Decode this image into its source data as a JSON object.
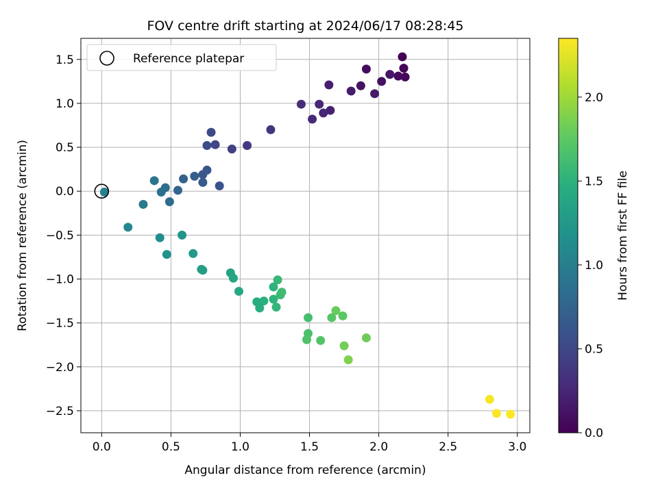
{
  "chart_data": {
    "type": "scatter",
    "title": "FOV centre drift starting at 2024/06/17 08:28:45",
    "xlabel": "Angular distance from reference (arcmin)",
    "ylabel": "Rotation from reference (arcmin)",
    "xlim": [
      -0.15,
      3.09
    ],
    "ylim": [
      -2.75,
      1.74
    ],
    "x_ticks": [
      0.0,
      0.5,
      1.0,
      1.5,
      2.0,
      2.5,
      3.0
    ],
    "x_tick_labels": [
      "0.0",
      "0.5",
      "1.0",
      "1.5",
      "2.0",
      "2.5",
      "3.0"
    ],
    "y_ticks": [
      1.5,
      1.0,
      0.5,
      0.0,
      -0.5,
      -1.0,
      -1.5,
      -2.0,
      -2.5
    ],
    "y_tick_labels": [
      "1.5",
      "1.0",
      "0.5",
      "0.0",
      "−0.5",
      "−1.0",
      "−1.5",
      "−2.0",
      "−2.5"
    ],
    "grid": true,
    "legend": {
      "position": "top-left",
      "entries": [
        "Reference platepar"
      ]
    },
    "reference_point": {
      "x": 0.0,
      "y": 0.0
    },
    "colorbar": {
      "label": "Hours from first FF file",
      "colormap": "viridis",
      "range": [
        0.0,
        2.35
      ],
      "ticks": [
        0.0,
        0.5,
        1.0,
        1.5,
        2.0
      ],
      "tick_labels": [
        "0.0",
        "0.5",
        "1.0",
        "1.5",
        "2.0"
      ]
    },
    "points": [
      {
        "x": 2.17,
        "y": 1.53,
        "t": 0.0
      },
      {
        "x": 2.18,
        "y": 1.4,
        "t": 0.02
      },
      {
        "x": 2.19,
        "y": 1.3,
        "t": 0.04
      },
      {
        "x": 2.14,
        "y": 1.31,
        "t": 0.06
      },
      {
        "x": 1.91,
        "y": 1.39,
        "t": 0.08
      },
      {
        "x": 2.02,
        "y": 1.25,
        "t": 0.1
      },
      {
        "x": 1.87,
        "y": 1.2,
        "t": 0.12
      },
      {
        "x": 2.08,
        "y": 1.33,
        "t": 0.14
      },
      {
        "x": 1.97,
        "y": 1.11,
        "t": 0.16
      },
      {
        "x": 1.8,
        "y": 1.14,
        "t": 0.18
      },
      {
        "x": 1.64,
        "y": 1.21,
        "t": 0.2
      },
      {
        "x": 1.65,
        "y": 0.92,
        "t": 0.22
      },
      {
        "x": 1.6,
        "y": 0.89,
        "t": 0.24
      },
      {
        "x": 1.57,
        "y": 0.99,
        "t": 0.26
      },
      {
        "x": 1.52,
        "y": 0.82,
        "t": 0.28
      },
      {
        "x": 1.44,
        "y": 0.99,
        "t": 0.3
      },
      {
        "x": 1.22,
        "y": 0.7,
        "t": 0.35
      },
      {
        "x": 1.05,
        "y": 0.52,
        "t": 0.4
      },
      {
        "x": 0.94,
        "y": 0.48,
        "t": 0.45
      },
      {
        "x": 0.82,
        "y": 0.53,
        "t": 0.5
      },
      {
        "x": 0.79,
        "y": 0.67,
        "t": 0.52
      },
      {
        "x": 0.76,
        "y": 0.52,
        "t": 0.54
      },
      {
        "x": 0.85,
        "y": 0.06,
        "t": 0.6
      },
      {
        "x": 0.76,
        "y": 0.24,
        "t": 0.62
      },
      {
        "x": 0.73,
        "y": 0.19,
        "t": 0.64
      },
      {
        "x": 0.73,
        "y": 0.1,
        "t": 0.66
      },
      {
        "x": 0.67,
        "y": 0.17,
        "t": 0.7
      },
      {
        "x": 0.59,
        "y": 0.14,
        "t": 0.74
      },
      {
        "x": 0.55,
        "y": 0.01,
        "t": 0.78
      },
      {
        "x": 0.49,
        "y": -0.12,
        "t": 0.82
      },
      {
        "x": 0.46,
        "y": 0.04,
        "t": 0.84
      },
      {
        "x": 0.43,
        "y": -0.01,
        "t": 0.86
      },
      {
        "x": 0.38,
        "y": 0.12,
        "t": 0.9
      },
      {
        "x": 0.3,
        "y": -0.15,
        "t": 0.96
      },
      {
        "x": 0.02,
        "y": -0.01,
        "t": 1.02
      },
      {
        "x": 0.19,
        "y": -0.41,
        "t": 1.08
      },
      {
        "x": 0.42,
        "y": -0.53,
        "t": 1.14
      },
      {
        "x": 0.47,
        "y": -0.72,
        "t": 1.18
      },
      {
        "x": 0.58,
        "y": -0.5,
        "t": 1.22
      },
      {
        "x": 0.66,
        "y": -0.71,
        "t": 1.26
      },
      {
        "x": 0.72,
        "y": -0.89,
        "t": 1.3
      },
      {
        "x": 0.73,
        "y": -0.9,
        "t": 1.32
      },
      {
        "x": 0.93,
        "y": -0.93,
        "t": 1.36
      },
      {
        "x": 0.95,
        "y": -0.99,
        "t": 1.38
      },
      {
        "x": 0.99,
        "y": -1.14,
        "t": 1.4
      },
      {
        "x": 1.12,
        "y": -1.26,
        "t": 1.44
      },
      {
        "x": 1.14,
        "y": -1.33,
        "t": 1.46
      },
      {
        "x": 1.17,
        "y": -1.25,
        "t": 1.48
      },
      {
        "x": 1.24,
        "y": -1.09,
        "t": 1.5
      },
      {
        "x": 1.24,
        "y": -1.23,
        "t": 1.52
      },
      {
        "x": 1.26,
        "y": -1.32,
        "t": 1.54
      },
      {
        "x": 1.27,
        "y": -1.01,
        "t": 1.56
      },
      {
        "x": 1.29,
        "y": -1.18,
        "t": 1.58
      },
      {
        "x": 1.3,
        "y": -1.15,
        "t": 1.6
      },
      {
        "x": 1.49,
        "y": -1.44,
        "t": 1.64
      },
      {
        "x": 1.49,
        "y": -1.62,
        "t": 1.66
      },
      {
        "x": 1.48,
        "y": -1.69,
        "t": 1.68
      },
      {
        "x": 1.58,
        "y": -1.7,
        "t": 1.7
      },
      {
        "x": 1.66,
        "y": -1.44,
        "t": 1.72
      },
      {
        "x": 1.74,
        "y": -1.42,
        "t": 1.74
      },
      {
        "x": 1.69,
        "y": -1.36,
        "t": 1.8
      },
      {
        "x": 1.75,
        "y": -1.76,
        "t": 1.84
      },
      {
        "x": 1.78,
        "y": -1.92,
        "t": 1.88
      },
      {
        "x": 1.91,
        "y": -1.67,
        "t": 1.82
      },
      {
        "x": 2.8,
        "y": -2.37,
        "t": 2.32
      },
      {
        "x": 2.85,
        "y": -2.53,
        "t": 2.34
      },
      {
        "x": 2.95,
        "y": -2.54,
        "t": 2.35
      }
    ]
  }
}
